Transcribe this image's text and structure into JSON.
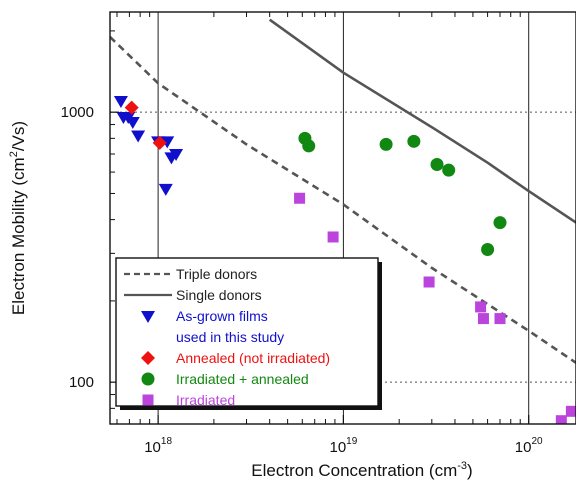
{
  "chart_data": {
    "type": "scatter",
    "xlabel": "Electron Concentration (cm",
    "xlabel_unit_exp": "-3",
    "xlabel_close": ")",
    "ylabel": "Electron Mobility (cm",
    "ylabel_unit_exp": "2",
    "ylabel_close": "/Vs)",
    "x_scale": "log",
    "y_scale": "log",
    "xlim": [
      5.5e+17,
      1.8e+20
    ],
    "ylim": [
      70,
      2350
    ],
    "x_ticks": [
      {
        "value": 1e+18,
        "base": "10",
        "exp": "18"
      },
      {
        "value": 1e+19,
        "base": "10",
        "exp": "19"
      },
      {
        "value": 1e+20,
        "base": "10",
        "exp": "20"
      }
    ],
    "y_ticks": [
      {
        "value": 100,
        "label": "100"
      },
      {
        "value": 1000,
        "label": "1000"
      }
    ],
    "grid": "major",
    "legend_position": "lower-left",
    "series": [
      {
        "name": "Triple donors",
        "kind": "line",
        "style": "dashed",
        "color": "#555555",
        "points": [
          [
            5.5e+17,
            1900
          ],
          [
            1e+18,
            1280
          ],
          [
            3e+18,
            760
          ],
          [
            1e+19,
            455
          ],
          [
            3e+19,
            265
          ],
          [
            1e+20,
            155
          ],
          [
            1.8e+20,
            118
          ]
        ]
      },
      {
        "name": "Single donors",
        "kind": "line",
        "style": "solid",
        "color": "#555555",
        "points": [
          [
            4e+18,
            2200
          ],
          [
            1e+19,
            1400
          ],
          [
            3e+19,
            880
          ],
          [
            6e+19,
            650
          ],
          [
            1e+20,
            510
          ],
          [
            1.8e+20,
            390
          ]
        ]
      },
      {
        "name": "As-grown films",
        "name_line2": "used in this study",
        "kind": "scatter",
        "marker": "triangle-down",
        "color": "#1010cc",
        "points": [
          [
            6.3e+17,
            1100
          ],
          [
            6.5e+17,
            960
          ],
          [
            6.9e+17,
            960
          ],
          [
            7.3e+17,
            920
          ],
          [
            7.8e+17,
            820
          ],
          [
            1e+18,
            780
          ],
          [
            1.12e+18,
            780
          ],
          [
            1.18e+18,
            680
          ],
          [
            1.25e+18,
            700
          ],
          [
            1.1e+18,
            520
          ]
        ]
      },
      {
        "name": "Annealed (not irradiated)",
        "kind": "scatter",
        "marker": "diamond",
        "color": "#ee1111",
        "points": [
          [
            7.2e+17,
            1040
          ],
          [
            1.02e+18,
            770
          ]
        ]
      },
      {
        "name": "Irradiated + annealed",
        "kind": "scatter",
        "marker": "circle",
        "color": "#118811",
        "points": [
          [
            6.2e+18,
            800
          ],
          [
            6.5e+18,
            750
          ],
          [
            1.7e+19,
            760
          ],
          [
            2.4e+19,
            780
          ],
          [
            3.2e+19,
            640
          ],
          [
            3.7e+19,
            610
          ],
          [
            6e+19,
            310
          ],
          [
            7e+19,
            390
          ]
        ]
      },
      {
        "name": "Irradiated",
        "kind": "scatter",
        "marker": "square",
        "color": "#bb44dd",
        "points": [
          [
            5.8e+18,
            480
          ],
          [
            8.8e+18,
            345
          ],
          [
            2.9e+19,
            235
          ],
          [
            5.5e+19,
            190
          ],
          [
            5.7e+19,
            172
          ],
          [
            7e+19,
            172
          ],
          [
            1.5e+20,
            72
          ],
          [
            1.7e+20,
            78
          ]
        ]
      }
    ]
  }
}
